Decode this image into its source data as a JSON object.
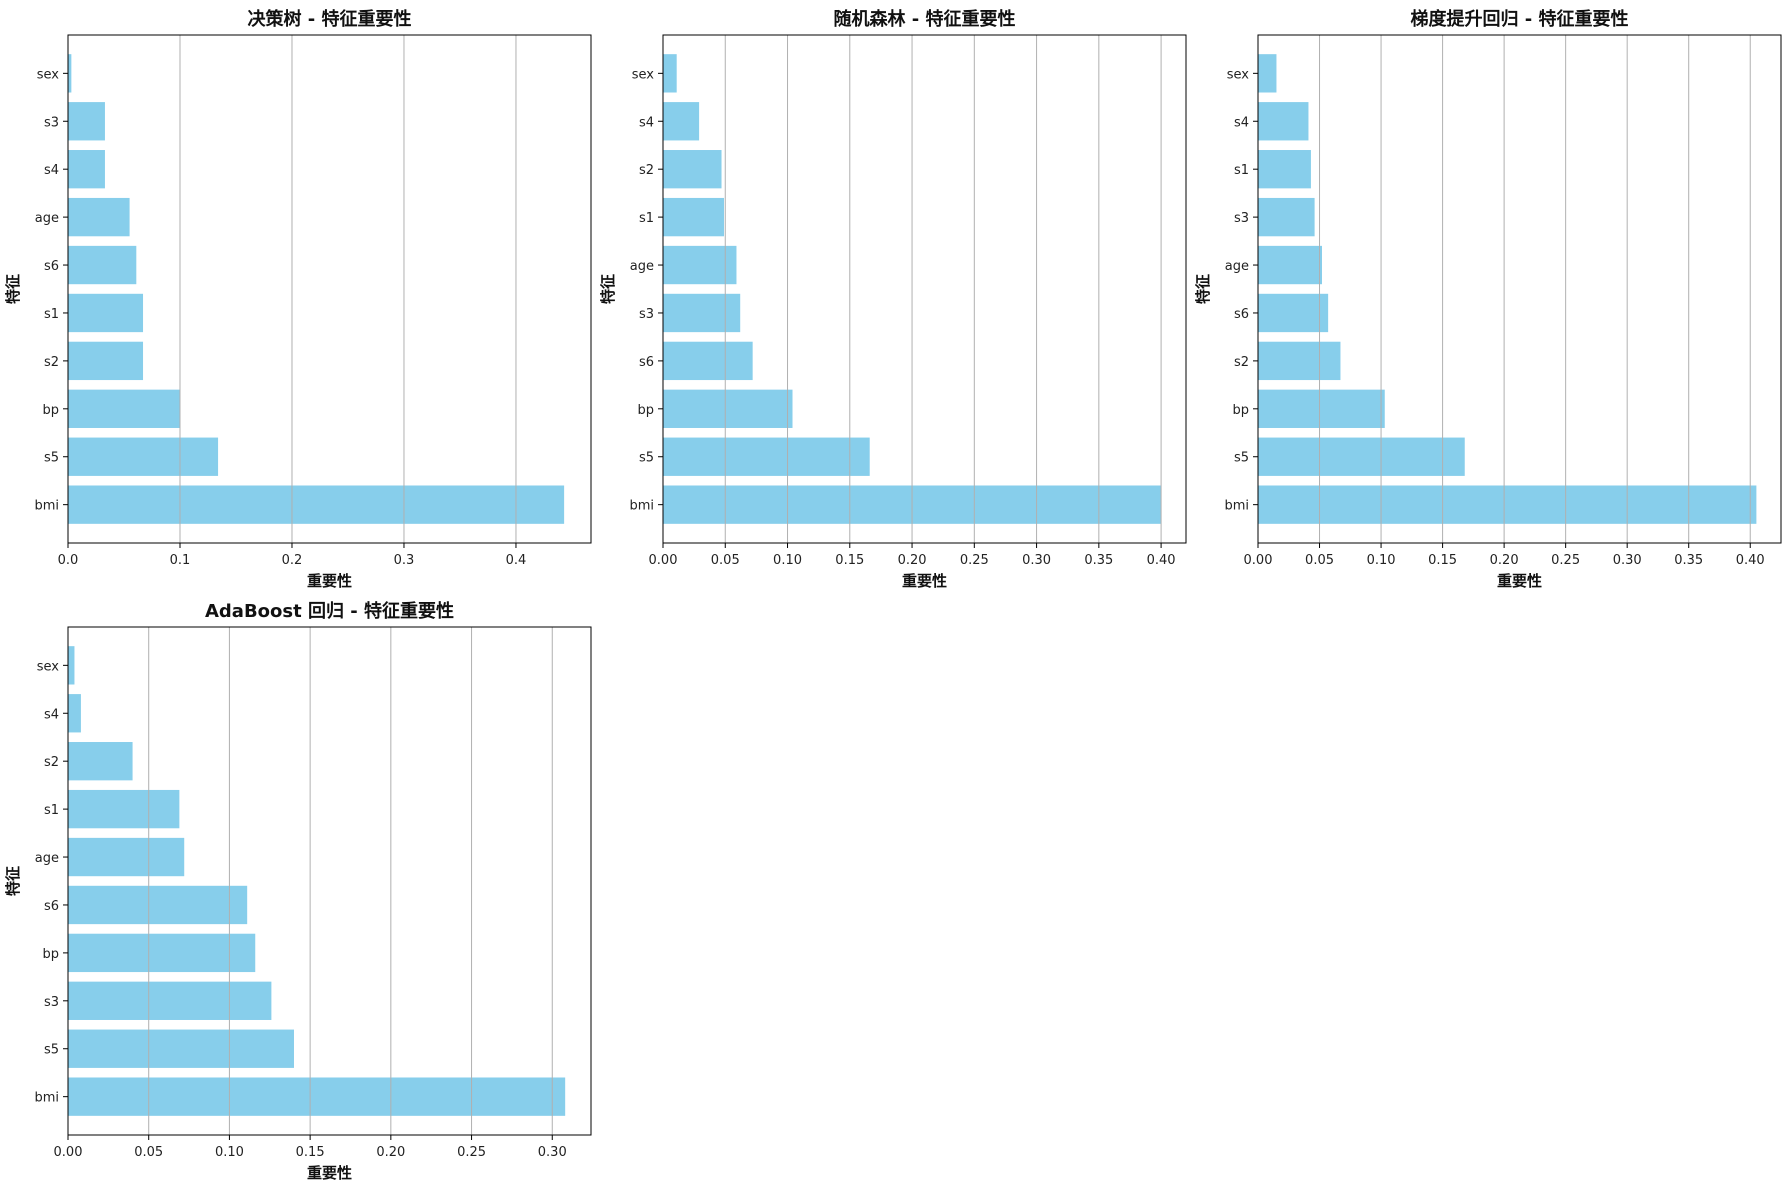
{
  "figure": {
    "bar_color": "#87CEEB",
    "grid_color": "#b0b0b0",
    "axis_color": "#000000"
  },
  "chart_data": [
    {
      "type": "bar",
      "orientation": "horizontal",
      "title": "决策树 - 特征重要性",
      "xlabel": "重要性",
      "ylabel": "特征",
      "categories": [
        "bmi",
        "s5",
        "bp",
        "s2",
        "s1",
        "s6",
        "age",
        "s4",
        "s3",
        "sex"
      ],
      "values": [
        0.443,
        0.134,
        0.1,
        0.067,
        0.067,
        0.061,
        0.055,
        0.033,
        0.033,
        0.003
      ],
      "xlim": [
        0,
        0.467
      ],
      "xticks": [
        "0.0",
        "0.1",
        "0.2",
        "0.3",
        "0.4"
      ],
      "xtick_values": [
        0,
        0.1,
        0.2,
        0.3,
        0.4
      ],
      "grid": "x"
    },
    {
      "type": "bar",
      "orientation": "horizontal",
      "title": "随机森林 - 特征重要性",
      "xlabel": "重要性",
      "ylabel": "特征",
      "categories": [
        "bmi",
        "s5",
        "bp",
        "s6",
        "s3",
        "age",
        "s1",
        "s2",
        "s4",
        "sex"
      ],
      "values": [
        0.4,
        0.166,
        0.104,
        0.072,
        0.062,
        0.059,
        0.049,
        0.047,
        0.029,
        0.011
      ],
      "xlim": [
        0,
        0.42
      ],
      "xticks": [
        "0.00",
        "0.05",
        "0.10",
        "0.15",
        "0.20",
        "0.25",
        "0.30",
        "0.35",
        "0.40"
      ],
      "xtick_values": [
        0,
        0.05,
        0.1,
        0.15,
        0.2,
        0.25,
        0.3,
        0.35,
        0.4
      ],
      "grid": "x"
    },
    {
      "type": "bar",
      "orientation": "horizontal",
      "title": "梯度提升回归 - 特征重要性",
      "xlabel": "重要性",
      "ylabel": "特征",
      "categories": [
        "bmi",
        "s5",
        "bp",
        "s2",
        "s6",
        "age",
        "s3",
        "s1",
        "s4",
        "sex"
      ],
      "values": [
        0.405,
        0.168,
        0.103,
        0.067,
        0.057,
        0.052,
        0.046,
        0.043,
        0.041,
        0.015
      ],
      "xlim": [
        0,
        0.425
      ],
      "xticks": [
        "0.00",
        "0.05",
        "0.10",
        "0.15",
        "0.20",
        "0.25",
        "0.30",
        "0.35",
        "0.40"
      ],
      "xtick_values": [
        0,
        0.05,
        0.1,
        0.15,
        0.2,
        0.25,
        0.3,
        0.35,
        0.4
      ],
      "grid": "x"
    },
    {
      "type": "bar",
      "orientation": "horizontal",
      "title": "AdaBoost 回归 - 特征重要性",
      "xlabel": "重要性",
      "ylabel": "特征",
      "categories": [
        "bmi",
        "s5",
        "s3",
        "bp",
        "s6",
        "age",
        "s1",
        "s2",
        "s4",
        "sex"
      ],
      "values": [
        0.308,
        0.14,
        0.126,
        0.116,
        0.111,
        0.072,
        0.069,
        0.04,
        0.008,
        0.004
      ],
      "xlim": [
        0,
        0.324
      ],
      "xticks": [
        "0.00",
        "0.05",
        "0.10",
        "0.15",
        "0.20",
        "0.25",
        "0.30"
      ],
      "xtick_values": [
        0,
        0.05,
        0.1,
        0.15,
        0.2,
        0.25,
        0.3
      ],
      "grid": "x"
    }
  ]
}
